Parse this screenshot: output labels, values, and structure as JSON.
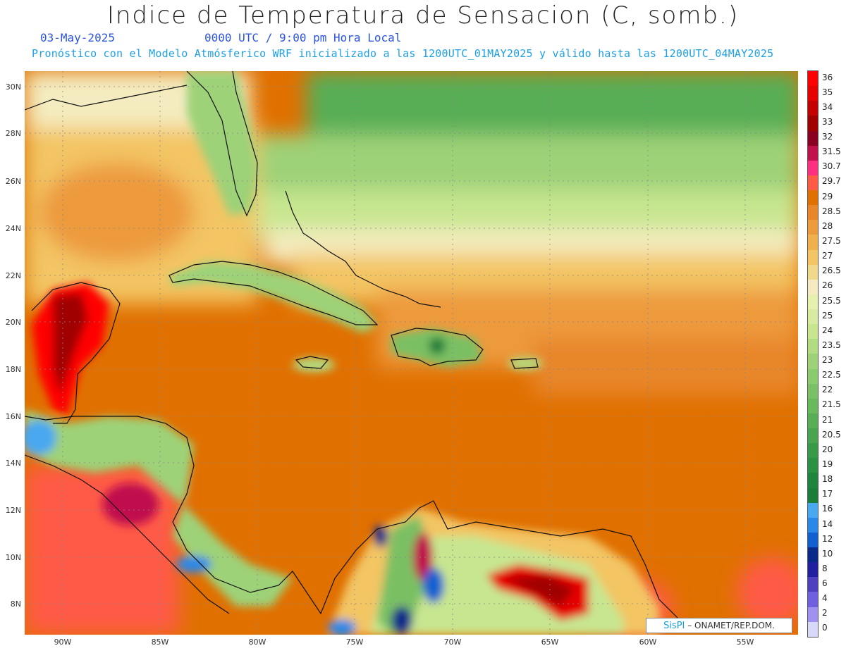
{
  "title": "Indice de Temperatura de Sensacion (C, somb.)",
  "date": "03-May-2025",
  "time": "0000 UTC / 9:00 pm Hora Local",
  "forecast_note": "Pronóstico con el Modelo Atmósferico WRF inicializado a las 1200UTC_01MAY2025 y válido hasta las  1200UTC_04MAY2025",
  "lat_labels": [
    "30N",
    "28N",
    "26N",
    "24N",
    "22N",
    "20N",
    "18N",
    "16N",
    "14N",
    "12N",
    "10N",
    "8N"
  ],
  "lon_labels": [
    "90W",
    "85W",
    "80W",
    "75W",
    "70W",
    "65W",
    "60W",
    "55W"
  ],
  "colorbar": {
    "labels": [
      "36",
      "35",
      "34",
      "33",
      "32",
      "31.5",
      "30.7",
      "29.7",
      "29",
      "28.5",
      "28",
      "27.5",
      "27",
      "26.5",
      "26",
      "25.5",
      "25",
      "24",
      "23.5",
      "23",
      "22.5",
      "22",
      "21.5",
      "21",
      "20.5",
      "20",
      "19",
      "18",
      "17",
      "16",
      "14",
      "12",
      "10",
      "8",
      "6",
      "4",
      "2",
      "0"
    ],
    "colors": [
      "#ff0000",
      "#e60000",
      "#c40000",
      "#a00000",
      "#8a0020",
      "#c0104e",
      "#ff3080",
      "#ff5a46",
      "#e07000",
      "#e8862a",
      "#ed9a3c",
      "#f1b04e",
      "#f3c564",
      "#f0d98a",
      "#f4ecc0",
      "#e8f0b0",
      "#d8eca0",
      "#c8e690",
      "#b2dc82",
      "#9ed278",
      "#8cca6e",
      "#7ac064",
      "#68b85c",
      "#58ae54",
      "#48a44e",
      "#389a48",
      "#2a9042",
      "#1e863c",
      "#1a7e3a",
      "#4aa8f0",
      "#2a88e8",
      "#1060d0",
      "#0a2a8a",
      "#2020a0",
      "#5040c0",
      "#7060e0",
      "#a090f0",
      "#d8d8f8"
    ]
  },
  "credit": {
    "brand": "SisPI",
    "org": "ONAMET/REP.DOM."
  }
}
